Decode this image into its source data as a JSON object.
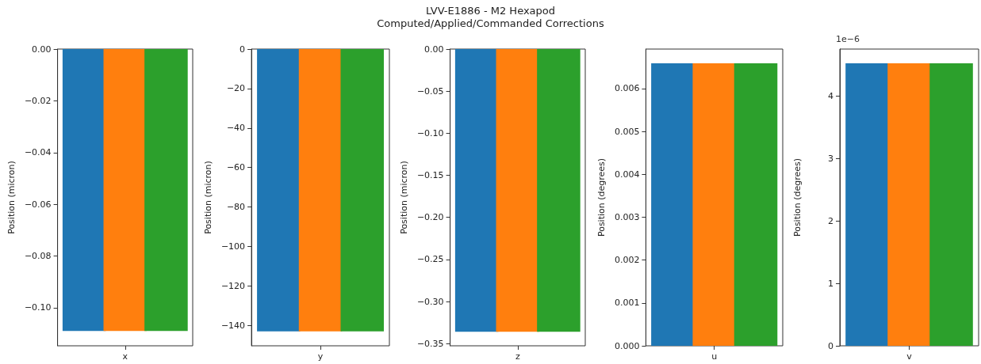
{
  "chart_data": [
    {
      "type": "bar",
      "categories": [
        null,
        "x",
        null
      ],
      "ylabel": "Position (micron)",
      "values": [
        -0.109,
        -0.109,
        -0.109
      ],
      "colors": [
        "#1f77b4",
        "#ff7f0e",
        "#2ca02c"
      ],
      "ylim": [
        -0.1147,
        0
      ],
      "yticks": [
        {
          "value": -0.1,
          "label": "−0.10"
        },
        {
          "value": -0.08,
          "label": "−0.08"
        },
        {
          "value": -0.06,
          "label": "−0.06"
        },
        {
          "value": -0.04,
          "label": "−0.04"
        },
        {
          "value": -0.02,
          "label": "−0.02"
        },
        {
          "value": 0,
          "label": "0.00"
        }
      ]
    },
    {
      "type": "bar",
      "categories": [
        null,
        "y",
        null
      ],
      "ylabel": "Position (micron)",
      "values": [
        -143,
        -143,
        -143
      ],
      "colors": [
        "#1f77b4",
        "#ff7f0e",
        "#2ca02c"
      ],
      "ylim": [
        -150.3,
        0
      ],
      "yticks": [
        {
          "value": -140,
          "label": "−140"
        },
        {
          "value": -120,
          "label": "−120"
        },
        {
          "value": -100,
          "label": "−100"
        },
        {
          "value": -80,
          "label": "−80"
        },
        {
          "value": -60,
          "label": "−60"
        },
        {
          "value": -40,
          "label": "−40"
        },
        {
          "value": -20,
          "label": "−20"
        },
        0
      ]
    },
    {
      "type": "bar",
      "title": "LVV-E1886 - M2 Hexapod\nComputed/Applied/Commanded Corrections",
      "categories": [
        null,
        "z",
        null
      ],
      "ylabel": "Position (micron)",
      "values": [
        -0.336,
        -0.336,
        -0.336
      ],
      "colors": [
        "#1f77b4",
        "#ff7f0e",
        "#2ca02c"
      ],
      "ylim": [
        -0.3526,
        0
      ],
      "yticks": [
        {
          "value": -0.35,
          "label": "−0.35"
        },
        {
          "value": -0.3,
          "label": "−0.30"
        },
        {
          "value": -0.25,
          "label": "−0.25"
        },
        {
          "value": -0.2,
          "label": "−0.20"
        },
        {
          "value": -0.15,
          "label": "−0.15"
        },
        {
          "value": -0.1,
          "label": "−0.10"
        },
        {
          "value": -0.05,
          "label": "−0.05"
        },
        {
          "value": 0,
          "label": "0.00"
        }
      ]
    },
    {
      "type": "bar",
      "categories": [
        null,
        "u",
        null
      ],
      "ylabel": "Position (degrees)",
      "values": [
        0.00659,
        0.00659,
        0.00659
      ],
      "colors": [
        "#1f77b4",
        "#ff7f0e",
        "#2ca02c"
      ],
      "ylim": [
        0,
        0.006923
      ],
      "yticks": [
        {
          "value": 0,
          "label": "0.000"
        },
        0.001,
        0.002,
        0.003,
        0.004,
        0.005,
        0.006
      ]
    },
    {
      "type": "bar",
      "categories": [
        null,
        "v",
        null
      ],
      "ylabel": "Position (degrees)",
      "annotations": [
        "1e−6"
      ],
      "values": [
        4.53,
        4.53,
        4.53
      ],
      "colors": [
        "#1f77b4",
        "#ff7f0e",
        "#2ca02c"
      ],
      "ylim": [
        0,
        4.757
      ],
      "yticks": [
        0,
        1,
        2,
        3,
        4
      ]
    }
  ]
}
